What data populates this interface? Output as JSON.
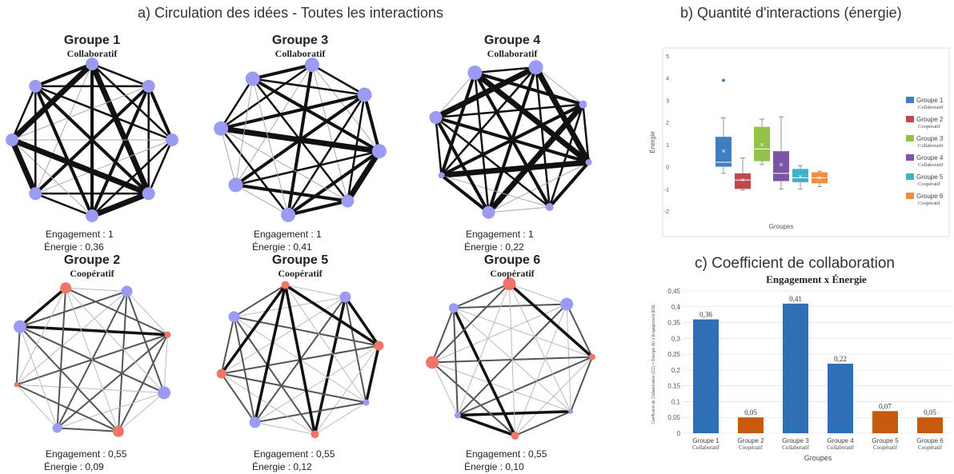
{
  "panel_a": {
    "title": "a) Circulation des idées - Toutes les interactions",
    "engagement_label": "Engagement :",
    "energie_label": "Énergie :",
    "groups": [
      {
        "name": "Groupe 1",
        "type": "Collaboratif",
        "engagement": "1",
        "energie": "0,36"
      },
      {
        "name": "Groupe 3",
        "type": "Collaboratif",
        "engagement": "1",
        "energie": "0,41"
      },
      {
        "name": "Groupe 4",
        "type": "Collaboratif",
        "engagement": "1",
        "energie": "0,22"
      },
      {
        "name": "Groupe 2",
        "type": "Coopératif",
        "engagement": "0,55",
        "energie": "0,09"
      },
      {
        "name": "Groupe 5",
        "type": "Coopératif",
        "engagement": "0,55",
        "energie": "0,12"
      },
      {
        "name": "Groupe 6",
        "type": "Coopératif",
        "engagement": "0,55",
        "energie": "0,10"
      }
    ],
    "colors": {
      "collaboratif_node": "#9b9bf4",
      "cooperatif_node": "#f07468",
      "edge": "#111111"
    }
  },
  "chart_data": [
    {
      "type": "box",
      "title": "b) Quantité d'interactions (énergie)",
      "ylabel": "Énergie",
      "xlabel": "Groupes",
      "ylim": [
        -2,
        5
      ],
      "yticks": [
        -2,
        -1,
        0,
        1,
        2,
        3,
        4,
        5
      ],
      "series": [
        {
          "name": "Groupe 1",
          "type": "Collaboratif",
          "color": "#3f7fc1",
          "min": -0.3,
          "q1": 0.0,
          "median": 0.2,
          "q3": 1.35,
          "max": 2.2,
          "mean": 0.7,
          "outliers": [
            3.9
          ]
        },
        {
          "name": "Groupe 2",
          "type": "Coopératif",
          "color": "#c0474a",
          "min": -1.05,
          "q1": -1.0,
          "median": -0.6,
          "q3": -0.3,
          "max": 0.4,
          "mean": -0.6,
          "outliers": []
        },
        {
          "name": "Groupe 3",
          "type": "Collaboratif",
          "color": "#93c14a",
          "min": 0.1,
          "q1": 0.25,
          "median": 0.8,
          "q3": 1.8,
          "max": 2.15,
          "mean": 1.0,
          "outliers": []
        },
        {
          "name": "Groupe 4",
          "type": "Collaboratif",
          "color": "#7c55a6",
          "min": -1.0,
          "q1": -0.65,
          "median": -0.3,
          "q3": 0.7,
          "max": 2.25,
          "mean": 0.1,
          "outliers": []
        },
        {
          "name": "Groupe 5",
          "type": "Coopératif",
          "color": "#3eb2cb",
          "min": -1.0,
          "q1": -0.7,
          "median": -0.5,
          "q3": -0.1,
          "max": 0.05,
          "mean": -0.45,
          "outliers": []
        },
        {
          "name": "Groupe 6",
          "type": "Coopératif",
          "color": "#f08d3e",
          "min": -0.9,
          "q1": -0.75,
          "median": -0.5,
          "q3": -0.25,
          "max": -0.2,
          "mean": -0.5,
          "outliers": []
        }
      ]
    },
    {
      "type": "bar",
      "title": "c) Coefficient de collaboration",
      "subtitle": "Engagement x Énergie",
      "ylabel": "Coefficient de Collaboration (CC) = Énergie (E) x Engagement (EN)",
      "xlabel": "Groupes",
      "ylim": [
        0,
        0.45
      ],
      "yticks": [
        "0",
        "0,05",
        "0,1",
        "0,15",
        "0,2",
        "0,25",
        "0,3",
        "0,35",
        "0,4",
        "0,45"
      ],
      "categories": [
        "Groupe 1",
        "Groupe 2",
        "Groupe 3",
        "Groupe 4",
        "Groupe 5",
        "Groupe 6"
      ],
      "category_types": [
        "Collaboratif",
        "Coopératif",
        "Collaboratif",
        "Collaboratif",
        "Coopératif",
        "Coopératif"
      ],
      "values": [
        0.36,
        0.05,
        0.41,
        0.22,
        0.07,
        0.05
      ],
      "value_labels": [
        "0,36",
        "0,05",
        "0,41",
        "0,22",
        "0,07",
        "0,05"
      ],
      "colors": [
        "#2e6fb5",
        "#c85a0e",
        "#2e6fb5",
        "#2e6fb5",
        "#c85a0e",
        "#c85a0e"
      ]
    }
  ]
}
